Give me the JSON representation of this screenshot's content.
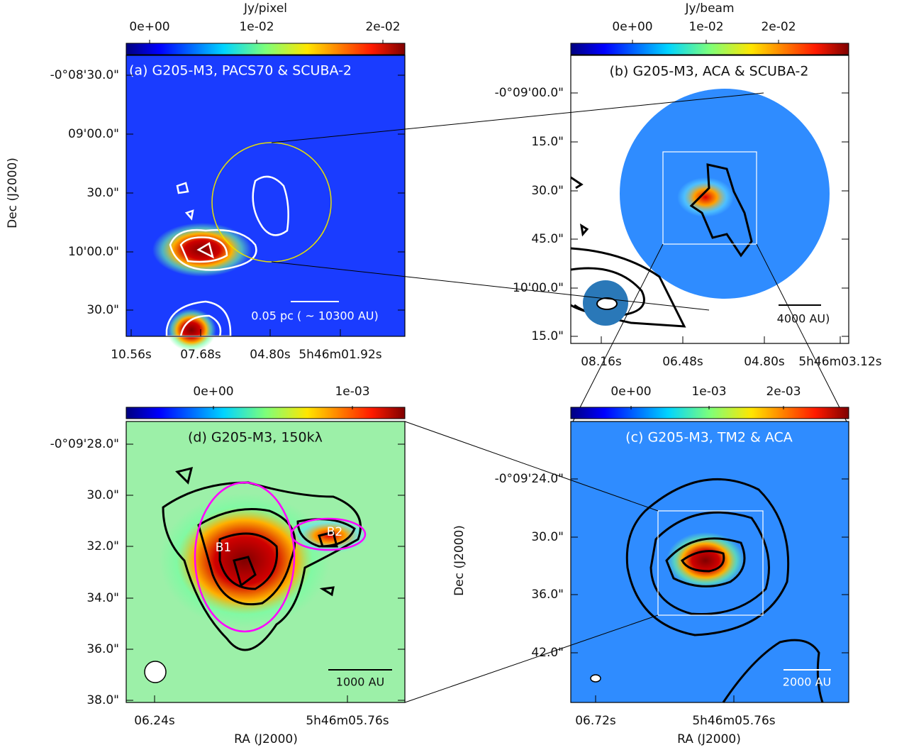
{
  "panels": [
    {
      "title": "(a) G205-M3, PACS70 & SCUBA-2",
      "colorbar_label": "Jy/pixel",
      "colorbar_ticks": [
        "0e+00",
        "1e-02",
        "2e-02"
      ],
      "y_label": "Dec (J2000)",
      "y_ticks": [
        "-0°08'30.0\"",
        "09'00.0\"",
        "30.0\"",
        "10'00.0\"",
        "30.0\""
      ],
      "x_ticks": [
        "10.56s",
        "07.68s",
        "04.80s",
        "5h46m01.92s"
      ],
      "scale_bar": "0.05 pc ( ~  10300 AU)"
    },
    {
      "title": "(b) G205-M3, ACA & SCUBA-2",
      "colorbar_label": "Jy/beam",
      "colorbar_ticks": [
        "0e+00",
        "1e-02",
        "2e-02"
      ],
      "y_ticks": [
        "-0°09'00.0\"",
        "15.0\"",
        "30.0\"",
        "45.0\"",
        "10'00.0\"",
        "15.0\""
      ],
      "x_ticks": [
        "08.16s",
        "06.48s",
        "04.80s",
        "5h46m03.12s"
      ],
      "scale_bar": "4000 AU)"
    },
    {
      "title": "(d) G205-M3, 150kλ",
      "colorbar_ticks": [
        "0e+00",
        "1e-03"
      ],
      "y_ticks": [
        "-0°09'28.0\"",
        "30.0\"",
        "32.0\"",
        "34.0\"",
        "36.0\"",
        "38.0\""
      ],
      "x_ticks": [
        "06.24s",
        "5h46m05.76s"
      ],
      "x_label": "RA (J2000)",
      "sources": [
        "B1",
        "B2"
      ],
      "scale_bar": "1000 AU"
    },
    {
      "title": "(c) G205-M3, TM2 & ACA",
      "colorbar_ticks": [
        "0e+00",
        "1e-03",
        "2e-03"
      ],
      "y_label": "Dec (J2000)",
      "y_ticks": [
        "-0°09'24.0\"",
        "30.0\"",
        "36.0\"",
        "42.0\""
      ],
      "x_ticks": [
        "06.72s",
        "5h46m05.76s"
      ],
      "x_label": "RA (J2000)",
      "scale_bar": "2000 AU"
    }
  ]
}
